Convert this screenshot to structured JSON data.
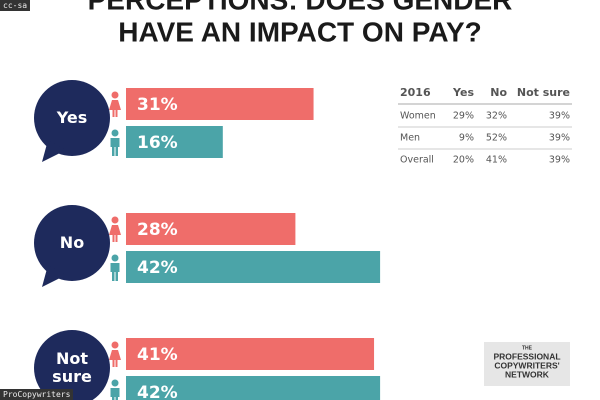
{
  "chart_data": {
    "type": "bar",
    "orientation": "horizontal",
    "title": [
      "PERCEPTIONS: DOES GENDER",
      "HAVE AN IMPACT ON PAY?"
    ],
    "categories": [
      "Yes",
      "No",
      "Not sure"
    ],
    "series": [
      {
        "color": "#ef6d6a",
        "values": [
          31,
          28,
          41
        ],
        "value_labels": [
          "31%",
          "28%",
          "41%"
        ]
      },
      {
        "color": "#4ba4a8",
        "values": [
          16,
          42,
          42
        ],
        "value_labels": [
          "16%",
          "42%",
          "42%"
        ]
      }
    ]
  },
  "table": {
    "header": [
      "2016",
      "Yes",
      "No",
      "Not sure"
    ],
    "rows": [
      [
        "Women",
        "29%",
        "32%",
        "39%"
      ],
      [
        "Men",
        "9%",
        "52%",
        "39%"
      ],
      [
        "Overall",
        "20%",
        "41%",
        "39%"
      ]
    ]
  },
  "logo": [
    "THE",
    "PROFESSIONAL",
    "COPYWRITERS'",
    "NETWORK"
  ],
  "watermarks": [
    "cc-sa",
    "ProCopywriters"
  ]
}
